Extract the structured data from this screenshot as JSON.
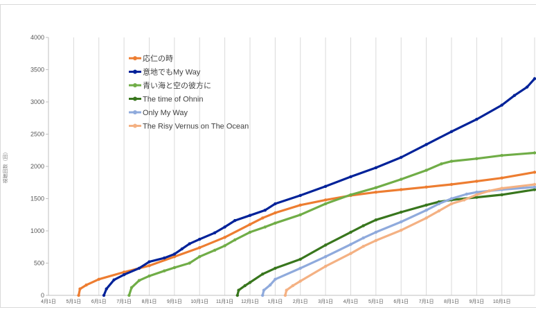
{
  "chart_data": {
    "type": "line",
    "title": "",
    "ylabel": "視聴回数（回）",
    "xlabel": "",
    "ylim": [
      0,
      4000
    ],
    "yticks": [
      0,
      500,
      1000,
      1500,
      2000,
      2500,
      3000,
      3500,
      4000
    ],
    "x_tick_labels": [
      "4月1日",
      "5月1日",
      "6月1日",
      "7月1日",
      "8月1日",
      "9月1日",
      "10月1日",
      "11月1日",
      "12月1日",
      "1月1日",
      "2月1日",
      "3月1日",
      "4月1日",
      "5月1日",
      "6月1日",
      "7月1日",
      "8月1日",
      "9月1日",
      "10月1日"
    ],
    "x_unit": "month index from first 4月1日 (0 = 4月1日)",
    "xlim": [
      0,
      19.3
    ],
    "grid": "vertical gridlines at month ticks",
    "legend_position": "upper-left inside plot",
    "series": [
      {
        "name": "応仁の時",
        "color": "#ed7d31",
        "points": [
          [
            1.2,
            0
          ],
          [
            1.25,
            100
          ],
          [
            1.5,
            160
          ],
          [
            2.0,
            250
          ],
          [
            3.0,
            360
          ],
          [
            4.0,
            460
          ],
          [
            5.0,
            600
          ],
          [
            6.0,
            740
          ],
          [
            7.0,
            900
          ],
          [
            8.0,
            1100
          ],
          [
            8.5,
            1200
          ],
          [
            9.0,
            1280
          ],
          [
            10.0,
            1400
          ],
          [
            11.0,
            1480
          ],
          [
            12.0,
            1550
          ],
          [
            13.0,
            1600
          ],
          [
            14.0,
            1640
          ],
          [
            15.0,
            1680
          ],
          [
            16.0,
            1720
          ],
          [
            17.0,
            1770
          ],
          [
            18.0,
            1820
          ],
          [
            19.3,
            1910
          ]
        ]
      },
      {
        "name": "意地でもMy Way",
        "color": "#002299",
        "points": [
          [
            2.2,
            0
          ],
          [
            2.3,
            100
          ],
          [
            2.6,
            240
          ],
          [
            3.0,
            320
          ],
          [
            3.6,
            420
          ],
          [
            4.0,
            520
          ],
          [
            4.6,
            580
          ],
          [
            5.0,
            640
          ],
          [
            5.3,
            720
          ],
          [
            5.6,
            800
          ],
          [
            6.0,
            870
          ],
          [
            6.6,
            970
          ],
          [
            7.0,
            1060
          ],
          [
            7.4,
            1160
          ],
          [
            8.0,
            1240
          ],
          [
            8.6,
            1320
          ],
          [
            9.0,
            1420
          ],
          [
            10.0,
            1550
          ],
          [
            11.0,
            1690
          ],
          [
            12.0,
            1840
          ],
          [
            13.0,
            1980
          ],
          [
            14.0,
            2140
          ],
          [
            15.0,
            2340
          ],
          [
            16.0,
            2540
          ],
          [
            17.0,
            2730
          ],
          [
            18.0,
            2950
          ],
          [
            18.5,
            3100
          ],
          [
            19.0,
            3230
          ],
          [
            19.3,
            3360
          ]
        ]
      },
      {
        "name": "青い海と空の彼方に",
        "color": "#70ad47",
        "points": [
          [
            3.2,
            0
          ],
          [
            3.3,
            120
          ],
          [
            3.6,
            230
          ],
          [
            4.0,
            300
          ],
          [
            4.6,
            380
          ],
          [
            5.0,
            430
          ],
          [
            5.6,
            500
          ],
          [
            6.0,
            600
          ],
          [
            6.6,
            700
          ],
          [
            7.0,
            770
          ],
          [
            7.4,
            860
          ],
          [
            8.0,
            980
          ],
          [
            8.6,
            1060
          ],
          [
            9.0,
            1120
          ],
          [
            10.0,
            1250
          ],
          [
            11.0,
            1420
          ],
          [
            12.0,
            1560
          ],
          [
            13.0,
            1670
          ],
          [
            14.0,
            1800
          ],
          [
            15.0,
            1940
          ],
          [
            15.6,
            2040
          ],
          [
            16.0,
            2080
          ],
          [
            17.0,
            2120
          ],
          [
            18.0,
            2170
          ],
          [
            19.3,
            2210
          ]
        ]
      },
      {
        "name": "The time of Ohnin",
        "color": "#38761d",
        "points": [
          [
            7.5,
            0
          ],
          [
            7.55,
            80
          ],
          [
            7.8,
            150
          ],
          [
            8.0,
            200
          ],
          [
            8.5,
            330
          ],
          [
            9.0,
            420
          ],
          [
            10.0,
            560
          ],
          [
            11.0,
            780
          ],
          [
            12.0,
            980
          ],
          [
            12.5,
            1080
          ],
          [
            13.0,
            1170
          ],
          [
            14.0,
            1290
          ],
          [
            15.0,
            1400
          ],
          [
            15.5,
            1450
          ],
          [
            16.0,
            1480
          ],
          [
            17.0,
            1520
          ],
          [
            18.0,
            1560
          ],
          [
            19.3,
            1640
          ]
        ]
      },
      {
        "name": "Only My Way",
        "color": "#8faadc",
        "points": [
          [
            8.5,
            0
          ],
          [
            8.55,
            80
          ],
          [
            8.8,
            160
          ],
          [
            9.0,
            250
          ],
          [
            10.0,
            420
          ],
          [
            11.0,
            600
          ],
          [
            12.0,
            790
          ],
          [
            12.5,
            890
          ],
          [
            13.0,
            980
          ],
          [
            14.0,
            1140
          ],
          [
            15.0,
            1320
          ],
          [
            15.5,
            1420
          ],
          [
            16.0,
            1500
          ],
          [
            16.6,
            1570
          ],
          [
            17.0,
            1600
          ],
          [
            18.0,
            1640
          ],
          [
            19.3,
            1680
          ]
        ]
      },
      {
        "name": "The Risy Vernus on The Ocean",
        "color": "#f4b183",
        "points": [
          [
            9.4,
            0
          ],
          [
            9.45,
            80
          ],
          [
            9.7,
            150
          ],
          [
            10.0,
            220
          ],
          [
            11.0,
            450
          ],
          [
            12.0,
            650
          ],
          [
            12.5,
            760
          ],
          [
            13.0,
            850
          ],
          [
            14.0,
            1010
          ],
          [
            15.0,
            1200
          ],
          [
            15.5,
            1310
          ],
          [
            16.0,
            1420
          ],
          [
            16.5,
            1480
          ],
          [
            17.0,
            1560
          ],
          [
            17.5,
            1620
          ],
          [
            18.0,
            1660
          ],
          [
            19.3,
            1720
          ]
        ]
      }
    ]
  }
}
